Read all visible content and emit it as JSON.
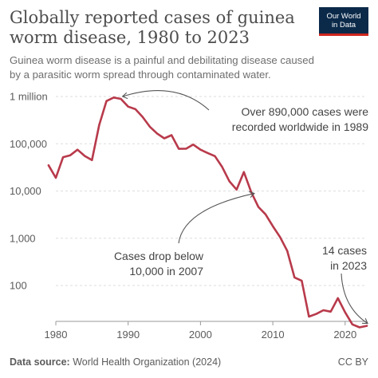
{
  "header": {
    "title_line1": "Globally reported cases of guinea",
    "title_line2": "worm disease, 1980 to 2023",
    "subtitle_line1": "Guinea worm disease is a painful and debilitating disease caused",
    "subtitle_line2": "by a parasitic worm spread through contaminated water.",
    "logo_line1": "Our World",
    "logo_line2": "in Data"
  },
  "footer": {
    "source_label": "Data source:",
    "source_text": "World Health Organization (2024)",
    "license": "CC BY"
  },
  "colors": {
    "line": "#b83a4b",
    "grid": "#dddddd",
    "text": "#5b5b5b",
    "logo_bg": "#0b2a4a",
    "logo_accent": "#ce261e"
  },
  "chart_data": {
    "type": "line",
    "title": "Globally reported cases of guinea worm disease, 1980 to 2023",
    "subtitle": "Guinea worm disease is a painful and debilitating disease caused by a parasitic worm spread through contaminated water.",
    "y_scale": "log",
    "ylim": [
      15,
      1000000
    ],
    "xlim": [
      1979.5,
      2023.5
    ],
    "grid": "horizontal dashed",
    "x_ticks": [
      "1980",
      "1990",
      "2000",
      "2010",
      "2020"
    ],
    "x_tick_values": [
      1980,
      1990,
      2000,
      2010,
      2020
    ],
    "y_ticks": [
      "1 million",
      "100,000",
      "10,000",
      "1,000",
      "100"
    ],
    "y_tick_values": [
      1000000,
      100000,
      10000,
      1000,
      100
    ],
    "series": [
      {
        "x": [
          1979,
          1980,
          1981,
          1982,
          1983,
          1984,
          1985,
          1986,
          1987,
          1988,
          1989,
          1990,
          1991,
          1992,
          1993,
          1994,
          1995,
          1996,
          1997,
          1998,
          1999,
          2000,
          2001,
          2002,
          2003,
          2004,
          2005,
          2006,
          2007,
          2008,
          2009,
          2010,
          2011,
          2012,
          2013,
          2014,
          2015,
          2016,
          2017,
          2018,
          2019,
          2020,
          2021,
          2022,
          2023
        ],
        "values": [
          35000,
          19000,
          52000,
          57000,
          75000,
          55000,
          45000,
          250000,
          800000,
          950000,
          890000,
          610000,
          540000,
          370000,
          229000,
          165000,
          130000,
          152000,
          78000,
          78500,
          96000,
          75000,
          63500,
          54600,
          32200,
          16000,
          10700,
          25200,
          9600,
          4600,
          3200,
          1800,
          1060,
          540,
          148,
          126,
          22,
          25,
          30,
          28,
          54,
          27,
          15,
          13,
          14
        ],
        "color": "#b83a4b"
      }
    ],
    "annotations": [
      {
        "line1": "Over 890,000 cases were",
        "line2": "recorded worldwide in 1989",
        "x": 1989,
        "y": 890000
      },
      {
        "line1": "Cases drop below",
        "line2": "10,000 in 2007",
        "x": 2007,
        "y": 9600
      },
      {
        "line1": "14 cases",
        "line2": "in 2023",
        "x": 2023,
        "y": 14
      }
    ]
  }
}
